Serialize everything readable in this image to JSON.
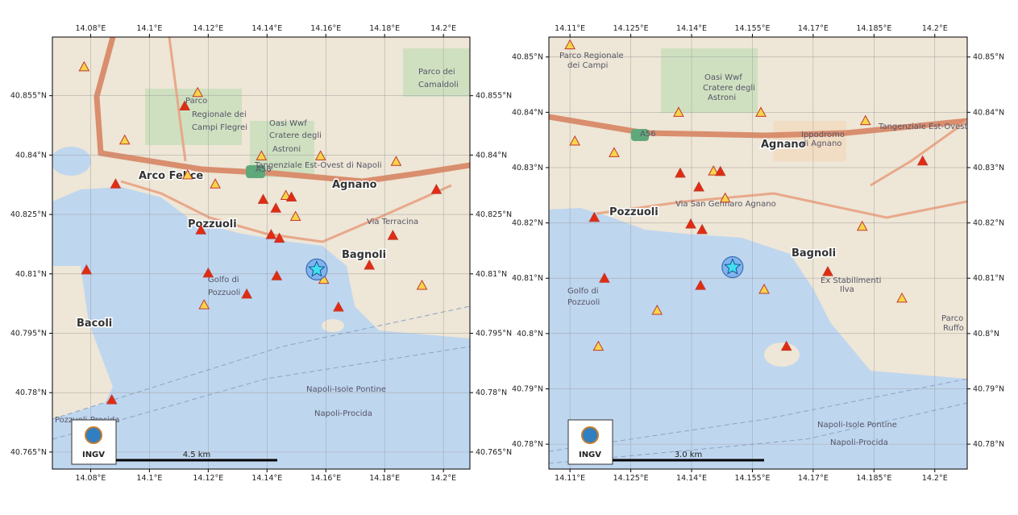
{
  "maps": [
    {
      "xlim": [
        14.067,
        14.209
      ],
      "ylim": [
        40.7607,
        40.8698
      ],
      "xticks": [
        {
          "value": 14.08,
          "label": "14.08°E"
        },
        {
          "value": 14.1,
          "label": "14.1°E"
        },
        {
          "value": 14.12,
          "label": "14.12°E"
        },
        {
          "value": 14.14,
          "label": "14.14°E"
        },
        {
          "value": 14.16,
          "label": "14.16°E"
        },
        {
          "value": 14.18,
          "label": "14.18°E"
        },
        {
          "value": 14.2,
          "label": "14.2°E"
        }
      ],
      "yticks": [
        {
          "value": 40.855,
          "label": "40.855°N"
        },
        {
          "value": 40.84,
          "label": "40.84°N"
        },
        {
          "value": 40.825,
          "label": "40.825°N"
        },
        {
          "value": 40.81,
          "label": "40.81°N"
        },
        {
          "value": 40.795,
          "label": "40.795°N"
        },
        {
          "value": 40.78,
          "label": "40.78°N"
        },
        {
          "value": 40.765,
          "label": "40.765°N"
        }
      ],
      "places": [
        "Arco Felice",
        "Pozzuoli",
        "Agnano",
        "Bagnoli",
        "Bacoli",
        "Golfo di",
        "Pozzuoli",
        "Oasi Wwf",
        "Cratere degli",
        "Astroni",
        "Parco",
        "Regionale dei",
        "Campi Flegrei",
        "Parco dei",
        "Camaldoli",
        "Tangenziale Est-Ovest di Napoli",
        "Via Terracina",
        "Napoli-Isole Pontine",
        "Napoli-Procida",
        "Pozzuoli-Procida",
        "A56"
      ],
      "scale_label": "4.5 km",
      "logo": "INGV",
      "events": [
        {
          "lon": 14.0778,
          "lat": 40.8623,
          "color": "#f7d54a"
        },
        {
          "lon": 14.1164,
          "lat": 40.8558,
          "color": "#f7d54a"
        },
        {
          "lon": 14.112,
          "lat": 40.8524,
          "color": "#e32b12"
        },
        {
          "lon": 14.0916,
          "lat": 40.8438,
          "color": "#f7d54a"
        },
        {
          "lon": 14.0885,
          "lat": 40.8327,
          "color": "#e32b12"
        },
        {
          "lon": 14.113,
          "lat": 40.835,
          "color": "#f7d54a"
        },
        {
          "lon": 14.1224,
          "lat": 40.8327,
          "color": "#f7d54a"
        },
        {
          "lon": 14.1175,
          "lat": 40.8211,
          "color": "#e32b12"
        },
        {
          "lon": 14.1381,
          "lat": 40.8398,
          "color": "#f7d54a"
        },
        {
          "lon": 14.1387,
          "lat": 40.8288,
          "color": "#e32b12"
        },
        {
          "lon": 14.143,
          "lat": 40.8266,
          "color": "#e32b12"
        },
        {
          "lon": 14.1464,
          "lat": 40.8298,
          "color": "#f7d54a"
        },
        {
          "lon": 14.1483,
          "lat": 40.8294,
          "color": "#e32b12"
        },
        {
          "lon": 14.1497,
          "lat": 40.8245,
          "color": "#f7d54a"
        },
        {
          "lon": 14.1414,
          "lat": 40.8199,
          "color": "#e32b12"
        },
        {
          "lon": 14.1442,
          "lat": 40.819,
          "color": "#e32b12"
        },
        {
          "lon": 14.1582,
          "lat": 40.8398,
          "color": "#f7d54a"
        },
        {
          "lon": 14.1839,
          "lat": 40.8384,
          "color": "#f7d54a"
        },
        {
          "lon": 14.1976,
          "lat": 40.8313,
          "color": "#e32b12"
        },
        {
          "lon": 14.1828,
          "lat": 40.8197,
          "color": "#e32b12"
        },
        {
          "lon": 14.12,
          "lat": 40.8102,
          "color": "#e32b12"
        },
        {
          "lon": 14.0786,
          "lat": 40.811,
          "color": "#e32b12"
        },
        {
          "lon": 14.1433,
          "lat": 40.8095,
          "color": "#e32b12"
        },
        {
          "lon": 14.1331,
          "lat": 40.8049,
          "color": "#e32b12"
        },
        {
          "lon": 14.1593,
          "lat": 40.8086,
          "color": "#f7d54a"
        },
        {
          "lon": 14.1748,
          "lat": 40.8122,
          "color": "#e32b12"
        },
        {
          "lon": 14.1927,
          "lat": 40.8071,
          "color": "#f7d54a"
        },
        {
          "lon": 14.1186,
          "lat": 40.8022,
          "color": "#f7d54a"
        },
        {
          "lon": 14.1643,
          "lat": 40.8016,
          "color": "#e32b12"
        },
        {
          "lon": 14.0872,
          "lat": 40.7782,
          "color": "#e32b12"
        }
      ],
      "star": {
        "lon": 14.1569,
        "lat": 40.8111,
        "color": "#3fe0f0"
      }
    },
    {
      "xlim": [
        14.1048,
        14.208
      ],
      "ylim": [
        40.7755,
        40.8536
      ],
      "xticks": [
        {
          "value": 14.11,
          "label": "14.11°E"
        },
        {
          "value": 14.125,
          "label": "14.125°E"
        },
        {
          "value": 14.14,
          "label": "14.14°E"
        },
        {
          "value": 14.155,
          "label": "14.155°E"
        },
        {
          "value": 14.17,
          "label": "14.17°E"
        },
        {
          "value": 14.185,
          "label": "14.185°E"
        },
        {
          "value": 14.2,
          "label": "14.2°E"
        }
      ],
      "yticks": [
        {
          "value": 40.85,
          "label": "40.85°N"
        },
        {
          "value": 40.84,
          "label": "40.84°N"
        },
        {
          "value": 40.83,
          "label": "40.83°N"
        },
        {
          "value": 40.82,
          "label": "40.82°N"
        },
        {
          "value": 40.81,
          "label": "40.81°N"
        },
        {
          "value": 40.8,
          "label": "40.8°N"
        },
        {
          "value": 40.79,
          "label": "40.79°N"
        },
        {
          "value": 40.78,
          "label": "40.78°N"
        }
      ],
      "places": [
        "Pozzuoli",
        "Agnano",
        "Bagnoli",
        "Golfo di",
        "Pozzuoli",
        "Oasi Wwf",
        "Cratere degli",
        "Astroni",
        "Parco Regionale",
        "dei Campi",
        "Ippodromo",
        "di Agnano",
        "Ex Stabilimenti",
        "Ilva",
        "Parco",
        "Ruffo",
        "Tangenziale Est-Ovest",
        "Via San Gennaro Agnano",
        "Napoli-Isole Pontine",
        "Napoli-Procida",
        "A56"
      ],
      "scale_label": "3.0 km",
      "logo": "INGV",
      "events": [
        {
          "lon": 14.11,
          "lat": 40.8522,
          "color": "#f7d54a"
        },
        {
          "lon": 14.1112,
          "lat": 40.8348,
          "color": "#f7d54a"
        },
        {
          "lon": 14.1209,
          "lat": 40.8327,
          "color": "#f7d54a"
        },
        {
          "lon": 14.116,
          "lat": 40.821,
          "color": "#e32b12"
        },
        {
          "lon": 14.1185,
          "lat": 40.81,
          "color": "#e32b12"
        },
        {
          "lon": 14.117,
          "lat": 40.7977,
          "color": "#f7d54a"
        },
        {
          "lon": 14.1315,
          "lat": 40.8042,
          "color": "#f7d54a"
        },
        {
          "lon": 14.1368,
          "lat": 40.84,
          "color": "#f7d54a"
        },
        {
          "lon": 14.1372,
          "lat": 40.829,
          "color": "#e32b12"
        },
        {
          "lon": 14.1418,
          "lat": 40.8265,
          "color": "#e32b12"
        },
        {
          "lon": 14.1454,
          "lat": 40.8294,
          "color": "#f7d54a"
        },
        {
          "lon": 14.1471,
          "lat": 40.8293,
          "color": "#e32b12"
        },
        {
          "lon": 14.1483,
          "lat": 40.8245,
          "color": "#f7d54a"
        },
        {
          "lon": 14.1398,
          "lat": 40.8198,
          "color": "#e32b12"
        },
        {
          "lon": 14.1426,
          "lat": 40.8188,
          "color": "#e32b12"
        },
        {
          "lon": 14.1422,
          "lat": 40.8087,
          "color": "#e32b12"
        },
        {
          "lon": 14.1571,
          "lat": 40.84,
          "color": "#f7d54a"
        },
        {
          "lon": 14.1829,
          "lat": 40.8385,
          "color": "#f7d54a"
        },
        {
          "lon": 14.197,
          "lat": 40.8312,
          "color": "#e32b12"
        },
        {
          "lon": 14.1821,
          "lat": 40.8194,
          "color": "#f7d54a"
        },
        {
          "lon": 14.1736,
          "lat": 40.8112,
          "color": "#e32b12"
        },
        {
          "lon": 14.1579,
          "lat": 40.808,
          "color": "#f7d54a"
        },
        {
          "lon": 14.1919,
          "lat": 40.8064,
          "color": "#f7d54a"
        },
        {
          "lon": 14.1634,
          "lat": 40.7977,
          "color": "#e32b12"
        }
      ],
      "star": {
        "lon": 14.1501,
        "lat": 40.812,
        "color": "#3fe0f0"
      }
    }
  ]
}
